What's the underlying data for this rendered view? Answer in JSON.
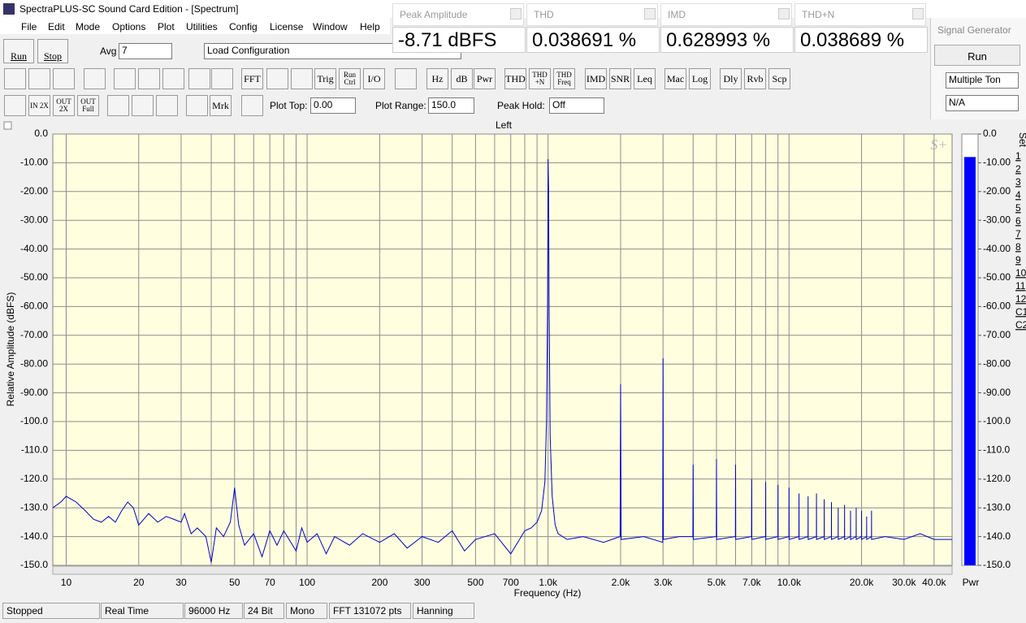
{
  "window": {
    "title": "SpectraPLUS-SC Sound Card Edition - [Spectrum]"
  },
  "menu": [
    "File",
    "Edit",
    "Mode",
    "Options",
    "Plot",
    "Utilities",
    "Config",
    "License",
    "Window",
    "Help"
  ],
  "controls": {
    "run": "Run",
    "stop": "Stop",
    "avg_label": "Avg",
    "avg_value": "7",
    "config": "Load Configuration"
  },
  "toolbar": {
    "buttons": [
      "FFT",
      "Trig",
      "Run Ctrl",
      "I/O",
      "Hz",
      "dB",
      "Pwr",
      "THD",
      "THD +N",
      "THD Freq",
      "IMD",
      "SNR",
      "Leq",
      "Mac",
      "Log",
      "Dly",
      "Rvb",
      "Scp"
    ],
    "zoom": [
      "IN 2X",
      "OUT 2X",
      "OUT Full"
    ],
    "marker": "Mrk",
    "plot_top_label": "Plot Top:",
    "plot_top": "0.00",
    "plot_range_label": "Plot Range:",
    "plot_range": "150.0",
    "peak_hold_label": "Peak Hold:",
    "peak_hold": "Off"
  },
  "measurements": [
    {
      "title": "Peak Amplitude",
      "value": "-8.71 dBFS"
    },
    {
      "title": "THD",
      "value": "0.038691 %"
    },
    {
      "title": "IMD",
      "value": "0.628993 %"
    },
    {
      "title": "THD+N",
      "value": "0.038689 %"
    }
  ],
  "signal_generator": {
    "title": "Signal Generator",
    "run": "Run",
    "mode": "Multiple Ton",
    "option": "N/A"
  },
  "plot_logo": "S+",
  "chart_data": {
    "type": "line",
    "title": "Left",
    "x_label": "Frequency (Hz)",
    "y_label": "Relative Amplitude (dBFS)",
    "x_scale": "log",
    "grid": true,
    "xlim": [
      8.8,
      47500
    ],
    "ylim": [
      -150,
      0
    ],
    "xticks": [
      10,
      20,
      30,
      50,
      70,
      100,
      200,
      300,
      500,
      700,
      {
        "value": 1000,
        "label": "1.0k"
      },
      {
        "value": 2000,
        "label": "2.0k"
      },
      {
        "value": 3000,
        "label": "3.0k"
      },
      {
        "value": 5000,
        "label": "5.0k"
      },
      {
        "value": 7000,
        "label": "7.0k"
      },
      {
        "value": 10000,
        "label": "10.0k"
      },
      {
        "value": 20000,
        "label": "20.0k"
      },
      {
        "value": 30000,
        "label": "30.0k"
      },
      {
        "value": 40000,
        "label": "40.0k"
      }
    ],
    "xminor": [
      40,
      60,
      80,
      90,
      400,
      600,
      800,
      900,
      4000,
      6000,
      8000,
      9000
    ],
    "yticks": [
      {
        "value": 0,
        "label": "0.0"
      },
      {
        "value": -10,
        "label": "-10.00"
      },
      {
        "value": -20,
        "label": "-20.00"
      },
      {
        "value": -30,
        "label": "-30.00"
      },
      {
        "value": -40,
        "label": "-40.00"
      },
      {
        "value": -50,
        "label": "-50.00"
      },
      {
        "value": -60,
        "label": "-60.00"
      },
      {
        "value": -70,
        "label": "-70.00"
      },
      {
        "value": -80,
        "label": "-80.00"
      },
      {
        "value": -90,
        "label": "-90.00"
      },
      {
        "value": -100,
        "label": "-100.0"
      },
      {
        "value": -110,
        "label": "-110.0"
      },
      {
        "value": -120,
        "label": "-120.0"
      },
      {
        "value": -130,
        "label": "-130.0"
      },
      {
        "value": -140,
        "label": "-140.0"
      },
      {
        "value": -150,
        "label": "-150.0"
      }
    ],
    "x": [
      8.8,
      9.5,
      10,
      11,
      12,
      13,
      14,
      15,
      16,
      17,
      18,
      19,
      20,
      22,
      24,
      26,
      28,
      30,
      31,
      33,
      35,
      38,
      40,
      42,
      45,
      48,
      50,
      52,
      55,
      60,
      65,
      70,
      75,
      80,
      90,
      95,
      100,
      110,
      120,
      130,
      150,
      170,
      200,
      230,
      260,
      300,
      350,
      400,
      450,
      500,
      600,
      700,
      800,
      850,
      900,
      940,
      970,
      985,
      995,
      1000,
      1005,
      1010,
      1020,
      1040,
      1070,
      1100,
      1200,
      1400,
      1700,
      1990,
      2000,
      2010,
      2500,
      2990,
      3000,
      3010,
      3500,
      3990,
      4000,
      4010,
      4990,
      5000,
      5010,
      5990,
      6000,
      6010,
      6990,
      7000,
      7010,
      7990,
      8000,
      8010,
      8990,
      9000,
      9010,
      9990,
      10000,
      10010,
      10990,
      11000,
      11010,
      11990,
      12000,
      12010,
      12990,
      13000,
      13010,
      13990,
      14000,
      14010,
      14990,
      15000,
      15010,
      15990,
      16000,
      16010,
      16990,
      17000,
      17010,
      17990,
      18000,
      18010,
      18990,
      19000,
      19010,
      19990,
      20000,
      20010,
      20990,
      21000,
      21010,
      21990,
      22000,
      22010,
      25000,
      30000,
      35000,
      40000,
      47500
    ],
    "series": [
      {
        "color": "#0000cc",
        "values": [
          -130,
          -128,
          -126,
          -128,
          -131,
          -134,
          -135,
          -133,
          -135,
          -131,
          -128,
          -130,
          -136,
          -132,
          -135,
          -133,
          -134,
          -135,
          -132,
          -139,
          -137,
          -140,
          -149,
          -137,
          -140,
          -135,
          -123,
          -136,
          -143,
          -139,
          -147,
          -138,
          -143,
          -138,
          -145,
          -137,
          -142,
          -139,
          -146,
          -140,
          -143,
          -139,
          -142,
          -139,
          -144,
          -140,
          -142,
          -138,
          -145,
          -141,
          -139,
          -146,
          -138,
          -137,
          -135,
          -131,
          -121,
          -100,
          -60,
          -8.71,
          -19,
          -60,
          -105,
          -126,
          -136,
          -139,
          -141,
          -140,
          -142,
          -140,
          -87,
          -141,
          -140,
          -142,
          -78,
          -141,
          -140,
          -140,
          -115,
          -141,
          -140,
          -113,
          -141,
          -140,
          -115,
          -141,
          -140,
          -120,
          -141,
          -140,
          -121,
          -141,
          -140,
          -122,
          -141,
          -140,
          -123,
          -141,
          -140,
          -125,
          -141,
          -140,
          -126,
          -141,
          -140,
          -125,
          -141,
          -140,
          -127,
          -141,
          -140,
          -128,
          -141,
          -140,
          -130,
          -141,
          -140,
          -129,
          -141,
          -140,
          -131,
          -141,
          -140,
          -130,
          -141,
          -140,
          -131,
          -141,
          -140,
          -133,
          -141,
          -140,
          -131,
          -141,
          -140,
          -141,
          -139,
          -141,
          -141
        ]
      }
    ]
  },
  "meter": {
    "value": -8,
    "ylim": [
      -150,
      0
    ],
    "color": "#0000ff",
    "label": "Pwr",
    "yticks": [
      {
        "value": 0,
        "label": "0.0"
      },
      {
        "value": -10,
        "label": "-10.00"
      },
      {
        "value": -20,
        "label": "-20.00"
      },
      {
        "value": -30,
        "label": "-30.00"
      },
      {
        "value": -40,
        "label": "-40.00"
      },
      {
        "value": -50,
        "label": "-50.00"
      },
      {
        "value": -60,
        "label": "-60.00"
      },
      {
        "value": -70,
        "label": "-70.00"
      },
      {
        "value": -80,
        "label": "-80.00"
      },
      {
        "value": -90,
        "label": "-90.00"
      },
      {
        "value": -100,
        "label": "-100.0"
      },
      {
        "value": -110,
        "label": "-110.0"
      },
      {
        "value": -120,
        "label": "-120.0"
      },
      {
        "value": -130,
        "label": "-130.0"
      },
      {
        "value": -140,
        "label": "-140.0"
      },
      {
        "value": -150,
        "label": "-150.0"
      }
    ]
  },
  "sets": {
    "title": "Set",
    "items": [
      "1",
      "2",
      "3",
      "4",
      "5",
      "6",
      "7",
      "8",
      "9",
      "10",
      "11",
      "12",
      "C1",
      "C2"
    ]
  },
  "status_bar": [
    "Stopped",
    "Real Time",
    "96000 Hz",
    "24 Bit",
    "Mono",
    "FFT 131072 pts",
    "Hanning"
  ]
}
